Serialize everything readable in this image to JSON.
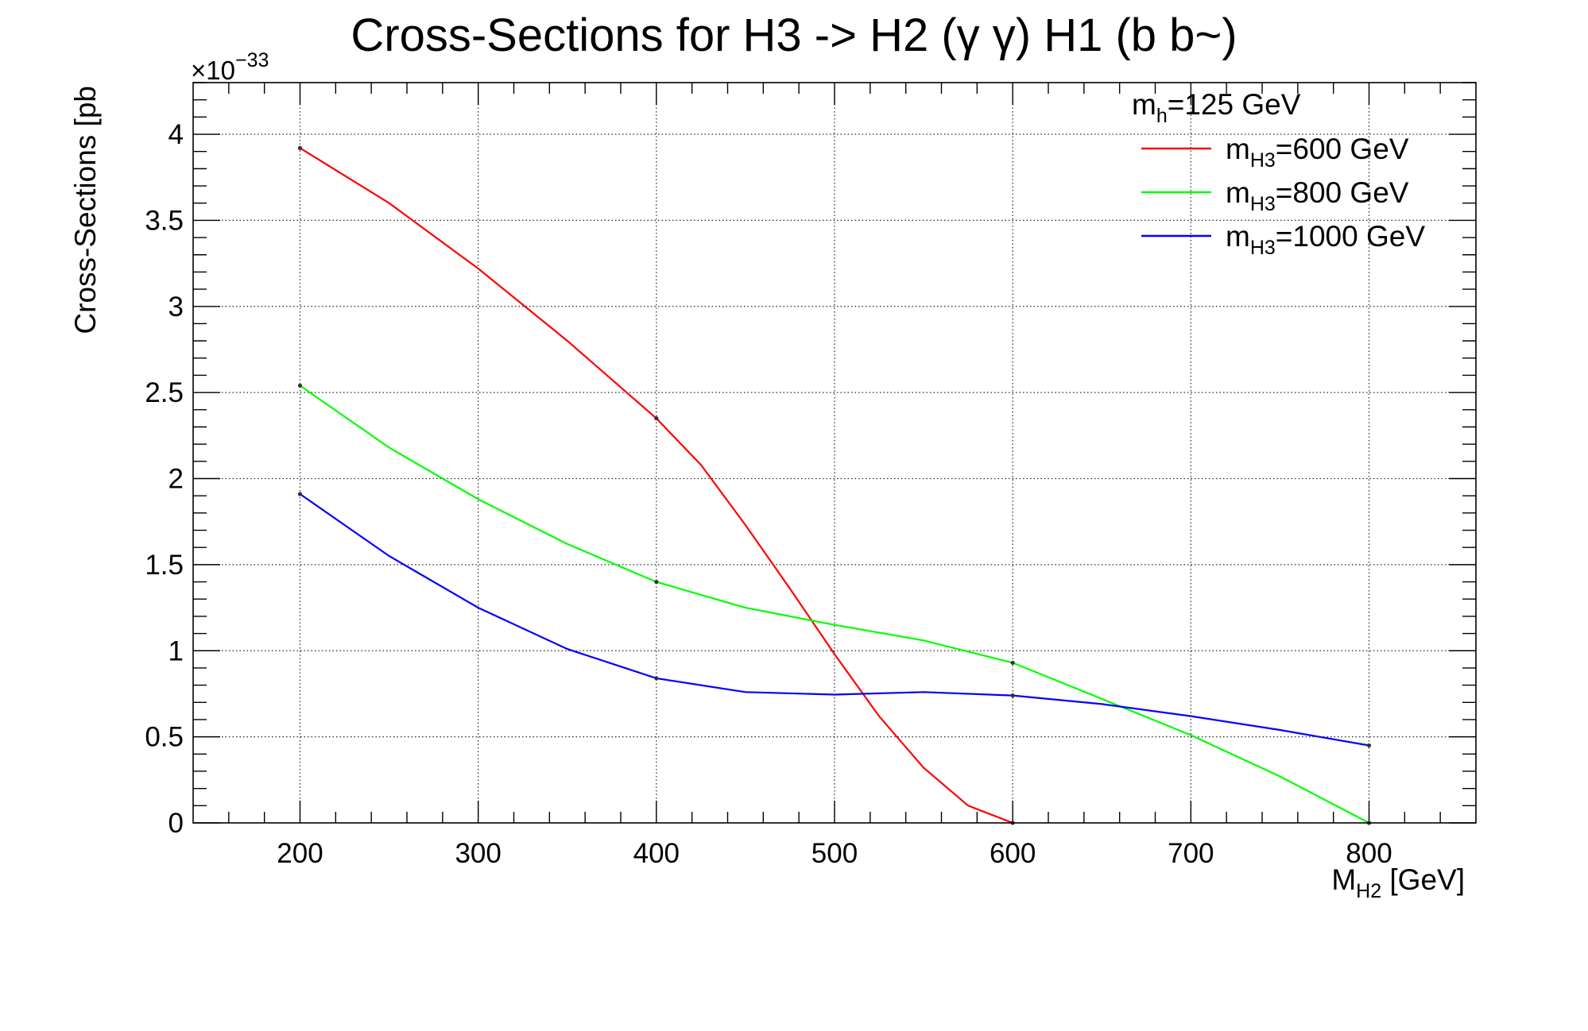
{
  "chart_data": {
    "type": "line",
    "title": "Cross-Sections for H3 -> H2 (γ γ) H1 (b b~)",
    "ylabel": "Cross-Sections [pb",
    "xlabel": {
      "main": "M",
      "sub": "H2",
      "suffix": " [GeV]"
    },
    "y_exponent": {
      "base": "×10",
      "power": "−33"
    },
    "xlim": [
      140,
      860
    ],
    "ylim": [
      0,
      4.3
    ],
    "x_ticks": [
      200,
      300,
      400,
      500,
      600,
      700,
      800
    ],
    "x_tick_labels": [
      "200",
      "300",
      "400",
      "500",
      "600",
      "700",
      "800"
    ],
    "y_ticks": [
      0,
      0.5,
      1,
      1.5,
      2,
      2.5,
      3,
      3.5,
      4
    ],
    "y_tick_labels": [
      "0",
      "0.5",
      "1",
      "1.5",
      "2",
      "2.5",
      "3",
      "3.5",
      "4"
    ],
    "grid": true,
    "legend": {
      "placement": "top-right",
      "header": {
        "main": "m",
        "sub": "h",
        "suffix": "=125 GeV"
      }
    },
    "series": [
      {
        "name": "m_H3=600 GeV",
        "label_main": "m",
        "label_sub": "H3",
        "label_suffix": "=600 GeV",
        "color": "#ff0000",
        "points_x": [
          200,
          400,
          600
        ],
        "points_y": [
          3.92,
          2.35,
          0.0
        ],
        "x": [
          200,
          250,
          300,
          350,
          400,
          425,
          450,
          475,
          500,
          525,
          550,
          575,
          600
        ],
        "y": [
          3.92,
          3.6,
          3.22,
          2.8,
          2.35,
          2.08,
          1.73,
          1.36,
          0.98,
          0.62,
          0.32,
          0.1,
          0.0
        ]
      },
      {
        "name": "m_H3=800 GeV",
        "label_main": "m",
        "label_sub": "H3",
        "label_suffix": "=800 GeV",
        "color": "#00ff00",
        "points_x": [
          200,
          400,
          600,
          800
        ],
        "points_y": [
          2.54,
          1.4,
          0.93,
          0.0
        ],
        "x": [
          200,
          250,
          300,
          350,
          400,
          450,
          500,
          550,
          600,
          650,
          700,
          750,
          800
        ],
        "y": [
          2.54,
          2.18,
          1.88,
          1.62,
          1.4,
          1.25,
          1.15,
          1.06,
          0.93,
          0.72,
          0.51,
          0.27,
          0.0
        ]
      },
      {
        "name": "m_H3=1000 GeV",
        "label_main": "m",
        "label_sub": "H3",
        "label_suffix": "=1000 GeV",
        "color": "#0000ff",
        "points_x": [
          200,
          400,
          600,
          800
        ],
        "points_y": [
          1.91,
          0.84,
          0.74,
          0.45
        ],
        "x": [
          200,
          250,
          300,
          350,
          400,
          450,
          500,
          550,
          600,
          650,
          700,
          750,
          800
        ],
        "y": [
          1.91,
          1.55,
          1.25,
          1.01,
          0.84,
          0.76,
          0.745,
          0.76,
          0.74,
          0.69,
          0.62,
          0.54,
          0.45
        ]
      }
    ]
  }
}
